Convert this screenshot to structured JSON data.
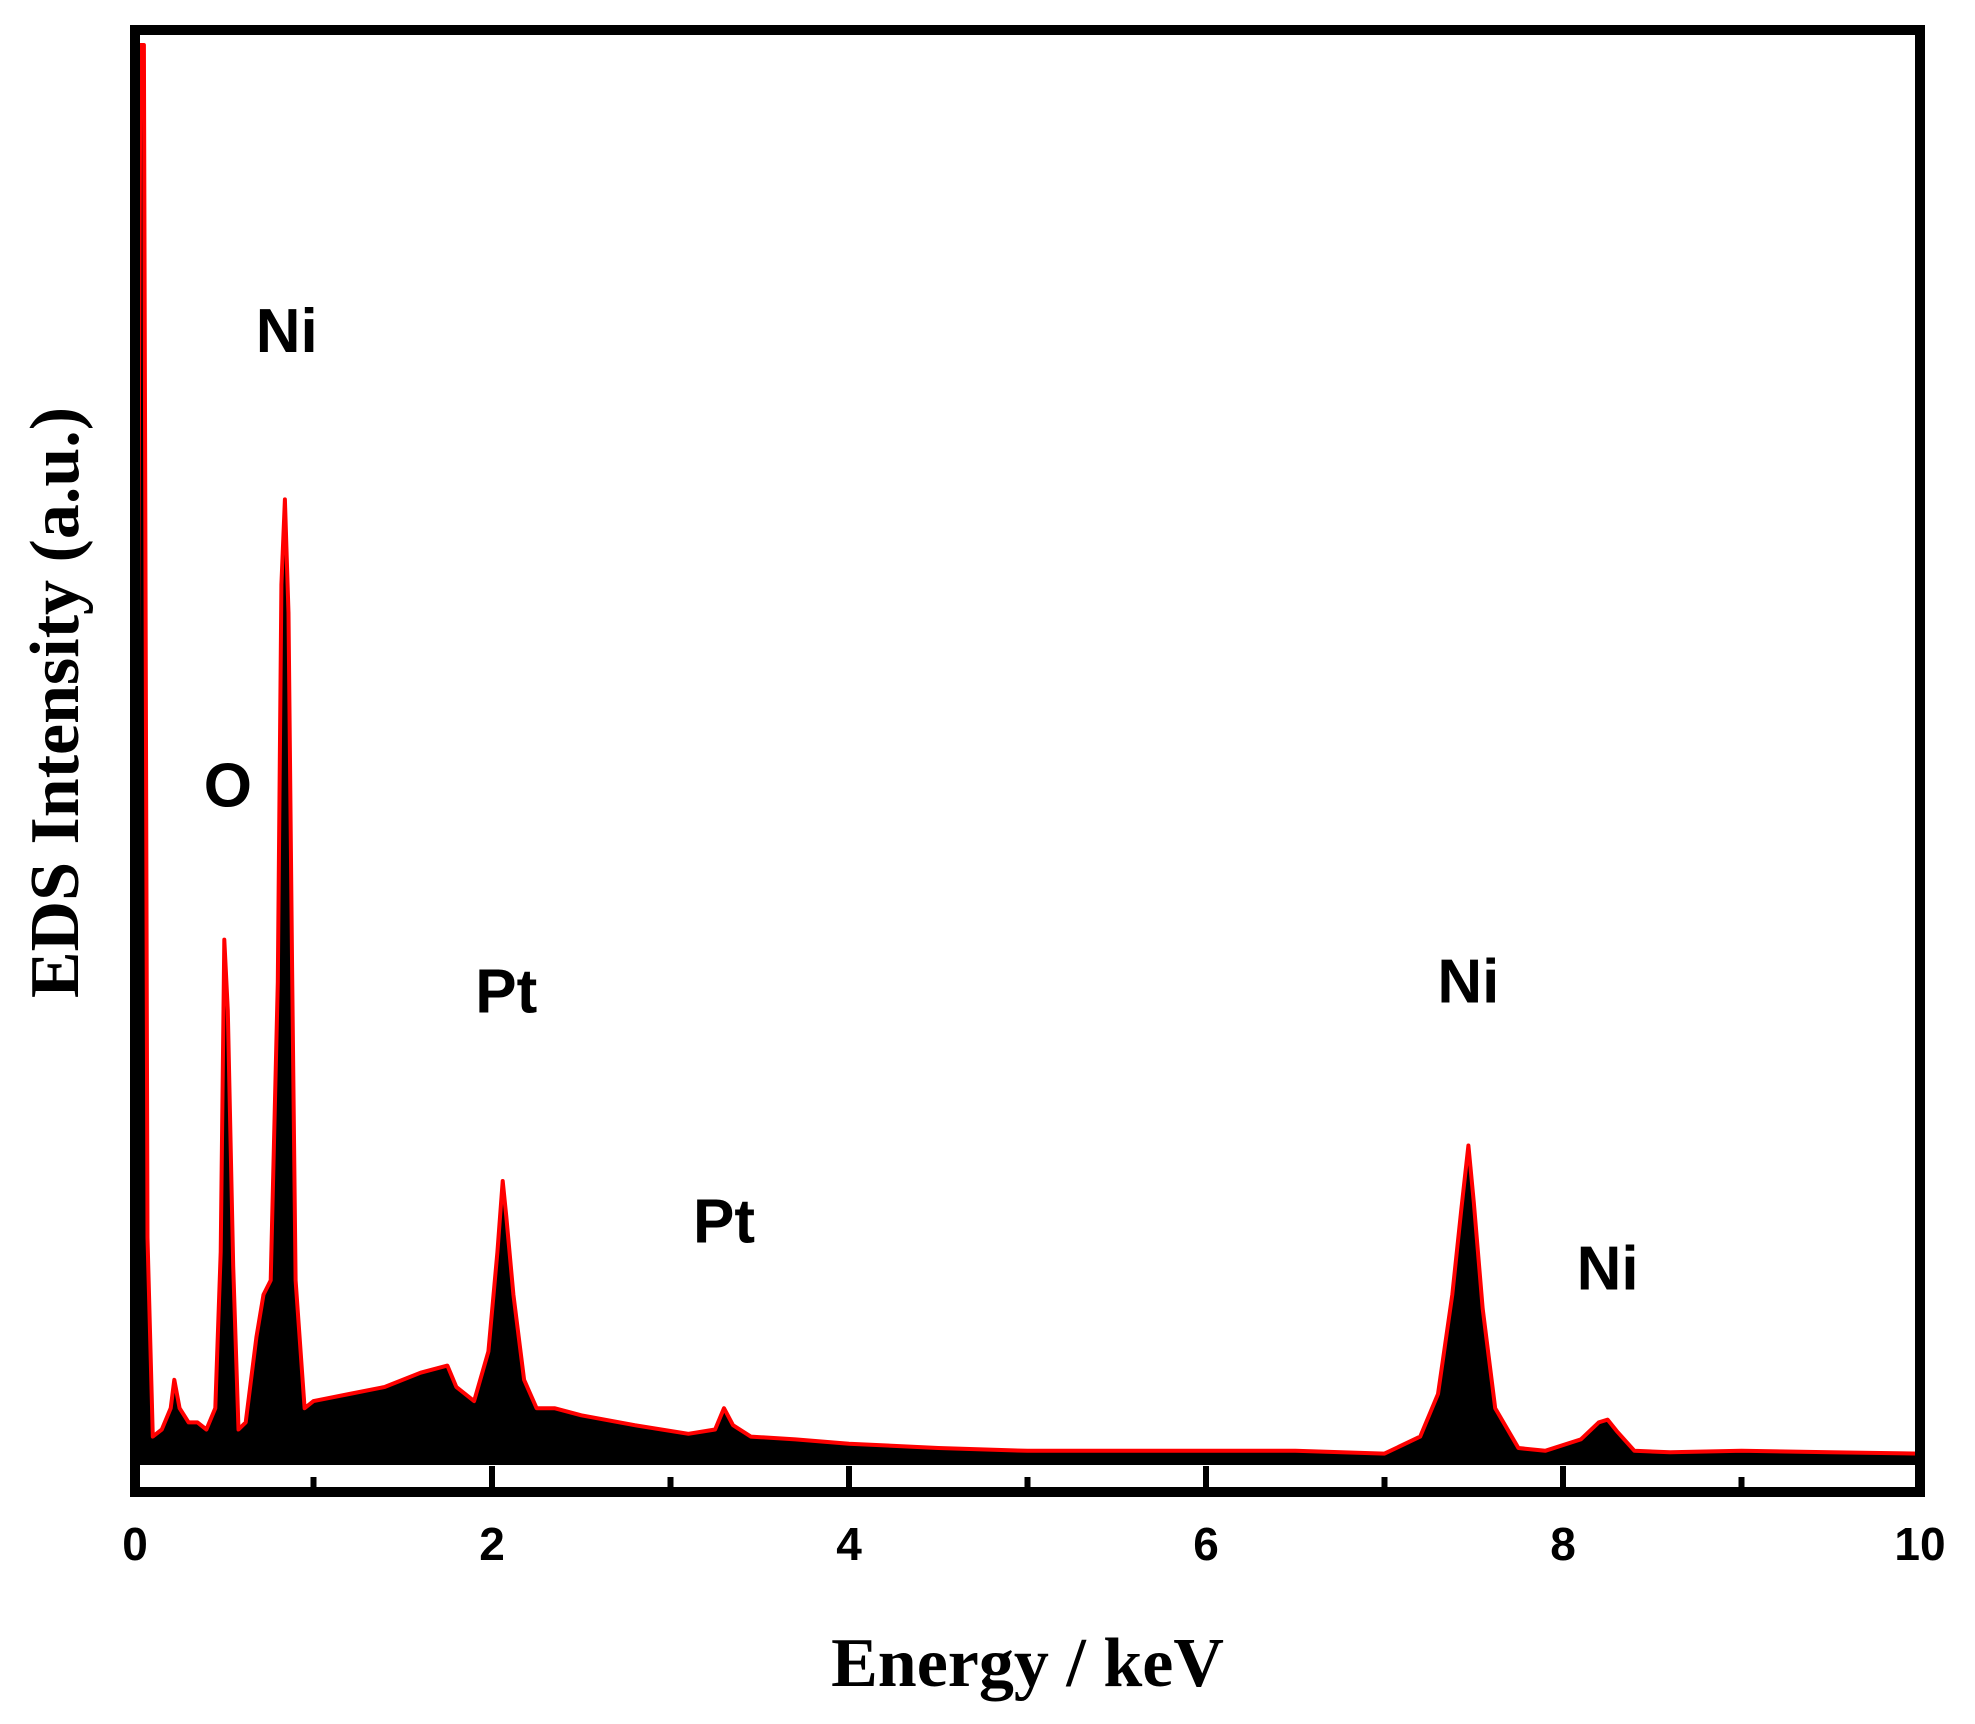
{
  "chart_data": {
    "type": "line",
    "title": "",
    "xlabel": "Energy / keV",
    "ylabel": "EDS Intensity (a.u.)",
    "xlim": [
      0,
      10
    ],
    "ylim": [
      0,
      1000
    ],
    "xticks": [
      0,
      2,
      4,
      6,
      8,
      10
    ],
    "yticks_shown": false,
    "grid": false,
    "legend": "none",
    "colors": {
      "line": "#ff0000",
      "fill": "#000000",
      "frame": "#000000"
    },
    "series": [
      {
        "x": [
          0,
          0.03,
          0.05,
          0.07,
          0.1,
          0.15,
          0.2,
          0.22,
          0.25,
          0.3,
          0.35,
          0.4,
          0.45,
          0.48,
          0.5,
          0.52,
          0.55,
          0.58,
          0.62,
          0.68,
          0.72,
          0.76,
          0.8,
          0.82,
          0.84,
          0.86,
          0.88,
          0.9,
          0.95,
          1.0,
          1.2,
          1.4,
          1.6,
          1.75,
          1.8,
          1.9,
          1.98,
          2.03,
          2.06,
          2.08,
          2.12,
          2.18,
          2.25,
          2.35,
          2.5,
          2.8,
          3.1,
          3.25,
          3.3,
          3.35,
          3.45,
          3.7,
          4.0,
          4.5,
          5.0,
          5.5,
          6.0,
          6.5,
          7.0,
          7.2,
          7.3,
          7.38,
          7.43,
          7.47,
          7.5,
          7.55,
          7.62,
          7.75,
          7.9,
          8.1,
          8.2,
          8.25,
          8.3,
          8.4,
          8.6,
          9.0,
          9.5,
          10.0
        ],
        "y": [
          40,
          1000,
          1000,
          160,
          20,
          25,
          40,
          60,
          40,
          30,
          30,
          25,
          40,
          150,
          370,
          320,
          140,
          25,
          30,
          90,
          120,
          130,
          340,
          620,
          680,
          600,
          350,
          130,
          40,
          45,
          50,
          55,
          65,
          70,
          55,
          45,
          80,
          150,
          200,
          175,
          120,
          60,
          40,
          40,
          35,
          28,
          22,
          25,
          40,
          28,
          20,
          18,
          15,
          12,
          10,
          10,
          10,
          10,
          8,
          20,
          50,
          120,
          180,
          225,
          185,
          110,
          40,
          12,
          10,
          18,
          30,
          32,
          24,
          10,
          9,
          10,
          9,
          8
        ]
      }
    ],
    "annotations": [
      {
        "label": "O",
        "x": 0.52,
        "y": 425
      },
      {
        "label": "Ni",
        "x": 0.85,
        "y": 745
      },
      {
        "label": "Pt",
        "x": 2.08,
        "y": 280
      },
      {
        "label": "Pt",
        "x": 3.3,
        "y": 118
      },
      {
        "label": "Ni",
        "x": 7.47,
        "y": 287
      },
      {
        "label": "Ni",
        "x": 8.25,
        "y": 85
      }
    ]
  }
}
